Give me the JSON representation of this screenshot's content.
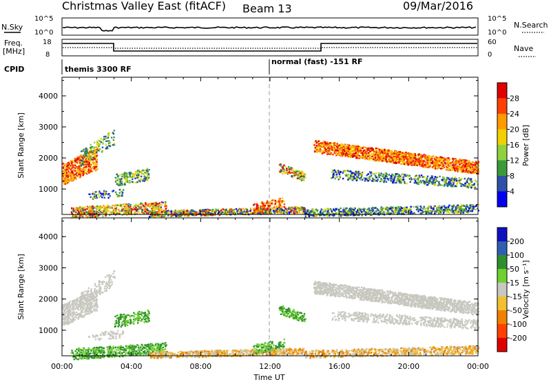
{
  "header": {
    "title": "Christmas Valley East (fitACF)",
    "beam": "Beam 13",
    "date": "09/Mar/2016"
  },
  "top_panels": {
    "nsky_label": "N.Sky",
    "nsearch_label": "N.Search",
    "nsky_ticks": [
      "10^5",
      "10^0"
    ],
    "nsearch_ticks": [
      "10^5",
      "10^0"
    ],
    "freq_label_1": "Freq.",
    "freq_label_2": "[MHz]",
    "freq_ticks": [
      "18",
      "8"
    ],
    "nave_label": "Nave",
    "nave_ticks": [
      "60",
      "0"
    ],
    "cpid_label": "CPID",
    "cpid_left": "themis 3300 RF",
    "cpid_right": "normal (fast) -151 RF"
  },
  "chart_data": [
    {
      "type": "heatmap",
      "name": "power",
      "ylabel": "Slant Range [km]",
      "colorbar_label": "Power [dB]",
      "ylim": [
        180,
        4600
      ],
      "yticks": [
        "1000",
        "2000",
        "3000",
        "4000"
      ],
      "colorbar_ticks": [
        "4",
        "8",
        "12",
        "16",
        "20",
        "24",
        "28"
      ],
      "colors": [
        "#0000ee",
        "#2f4fa8",
        "#3a9a3a",
        "#8fd13f",
        "#f0d000",
        "#ff9a00",
        "#ff4000",
        "#e00000"
      ]
    },
    {
      "type": "heatmap",
      "name": "velocity",
      "ylabel": "Slant Range [km]",
      "colorbar_label": "Velocity [m s⁻¹]",
      "ylim": [
        180,
        4600
      ],
      "yticks": [
        "1000",
        "2000",
        "3000",
        "4000"
      ],
      "colorbar_ticks": [
        "200",
        "100",
        "50",
        "15",
        "-15",
        "-50",
        "-100",
        "-200"
      ],
      "colors": [
        "#1010c0",
        "#2f5fb0",
        "#2f8f2f",
        "#70d030",
        "#c8c8c0",
        "#f0c030",
        "#f08000",
        "#ff4000",
        "#e00000"
      ]
    }
  ],
  "xaxis": {
    "label": "Time UT",
    "ticks": [
      "00:00",
      "04:00",
      "08:00",
      "12:00",
      "16:00",
      "20:00",
      "00:00"
    ]
  }
}
